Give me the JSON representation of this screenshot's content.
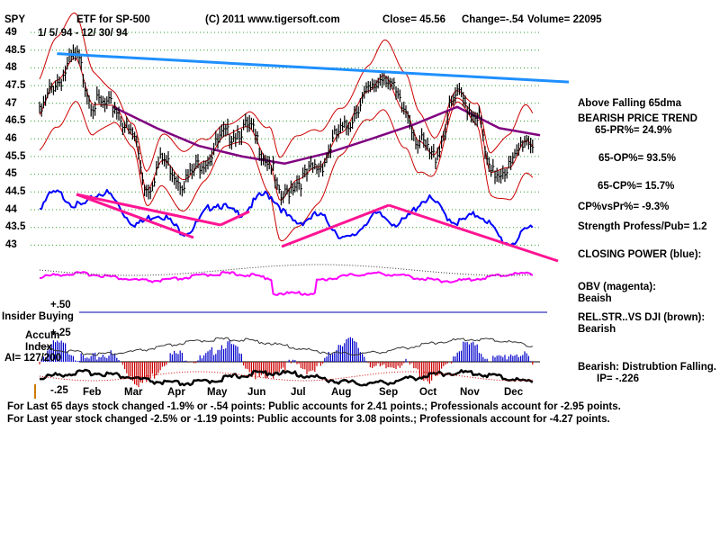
{
  "header": {
    "symbol": "SPY",
    "description": "ETF for SP-500",
    "source": "(C) 2011 www.tigersoft.com",
    "close": "Close=  45.56",
    "change": "Change=-.54",
    "volume": "Volume= 22095",
    "dates": "1/ 5/ 94 - 12/ 30/ 94"
  },
  "indicators": {
    "above_dma": "Above Falling 65dma",
    "trend": "BEARISH PRICE TREND",
    "pr": "65-PR%= 24.9%",
    "op": "65-OP%= 93.5%",
    "cp": "65-CP%= 15.7%",
    "cp_vs_pr": "CP%vsPr%= -9.3%",
    "strength": "Strength Profess/Pub= 1.2",
    "closing_power": "CLOSING POWER (blue):",
    "obv": "OBV (magenta):",
    "obv_state": "Beaish",
    "relstr": "REL.STR..VS DJI (brown):",
    "relstr_state": "Bearish",
    "distribution": "Bearish: Distrubtion Falling.",
    "ip": "IP= -.226"
  },
  "lower_panel": {
    "insider_buying": "Insider Buying",
    "plus50": "+.50",
    "plus25": "+.25",
    "minus25": "-.25",
    "accum1": "Accum",
    "accum2": "Index",
    "ai": "AI= 127/200"
  },
  "footer": {
    "line1": "For Last 65 days stock changed -1.9% or -.54 points:  Public accounts for  2.41 points.;  Professionals account for -2.95 points.",
    "line2": "For Last year stock changed -2.5% or -1.19 points:  Public accounts for  3.08 points.;  Professionals account for -4.27 points."
  },
  "colors": {
    "price_bars": "#000000",
    "bollinger": "#cc0000",
    "ma65": "#800080",
    "closing_power": "#0000ff",
    "obv": "#ff00ff",
    "trendline_top": "#1e8fff",
    "trendlines_pink": "#ff1493",
    "accum_pos": "#0000cc",
    "accum_neg": "#cc0000"
  },
  "chart_data": {
    "type": "line",
    "title": "SPY ETF for SP-500",
    "ylim": [
      42.5,
      49.0
    ],
    "y_ticks": [
      "49",
      "48.5",
      "48",
      "47.5",
      "47",
      "46.5",
      "46",
      "45.5",
      "45",
      "44.5",
      "44",
      "43.5",
      "43"
    ],
    "x_ticks": [
      "Feb",
      "Mar",
      "Apr",
      "May",
      "Jun",
      "Jul",
      "Aug",
      "Sep",
      "Oct",
      "Nov",
      "Dec"
    ],
    "price_series": {
      "name": "SPY close",
      "x": [
        "1994-01-05",
        "1994-01-20",
        "1994-02-02",
        "1994-02-15",
        "1994-03-01",
        "1994-03-15",
        "1994-03-25",
        "1994-04-05",
        "1994-04-20",
        "1994-05-05",
        "1994-05-20",
        "1994-06-05",
        "1994-06-20",
        "1994-06-28",
        "1994-07-10",
        "1994-07-25",
        "1994-08-10",
        "1994-08-30",
        "1994-09-10",
        "1994-09-25",
        "1994-10-05",
        "1994-10-15",
        "1994-11-01",
        "1994-11-15",
        "1994-11-25",
        "1994-12-08",
        "1994-12-20",
        "1994-12-30"
      ],
      "values": [
        46.6,
        47.6,
        48.3,
        47.0,
        46.9,
        46.1,
        44.6,
        45.4,
        44.8,
        45.4,
        46.1,
        46.3,
        45.4,
        44.3,
        44.8,
        45.2,
        46.2,
        47.3,
        47.8,
        46.8,
        45.9,
        45.5,
        47.2,
        46.7,
        45.0,
        45.2,
        46.0,
        45.6
      ]
    },
    "ma65_series": {
      "name": "65-day MA",
      "x": [
        "1994-03-01",
        "1994-04-01",
        "1994-05-01",
        "1994-06-01",
        "1994-07-01",
        "1994-08-01",
        "1994-09-01",
        "1994-10-01",
        "1994-11-01",
        "1994-12-01",
        "1994-12-30"
      ],
      "values": [
        46.9,
        46.3,
        45.8,
        45.5,
        45.3,
        45.6,
        46.0,
        46.4,
        46.9,
        46.3,
        46.1
      ]
    },
    "resistance_line": {
      "x": [
        "1994-01-20",
        "1994-12-30"
      ],
      "values": [
        48.4,
        47.6
      ]
    }
  }
}
